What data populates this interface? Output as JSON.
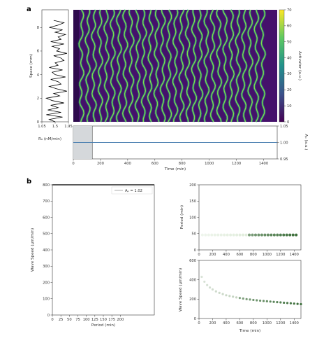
{
  "panel_labels": {
    "a": "a",
    "b": "b"
  },
  "colors": {
    "kymo_bg": "#45116b",
    "wave_line": "#7ede4a",
    "wave_mid": "#22a884",
    "axis": "#333333",
    "blue_line": "#4a7fb0",
    "shade": "#d5d8db",
    "green_dark": "#3c6e3a",
    "green_light": "#cfe2c8"
  },
  "chart_data": [
    {
      "id": "kymograph",
      "type": "heatmap",
      "ylabel": "Space (mm)",
      "xlim": [
        0,
        1500
      ],
      "ylim": [
        0,
        9.5
      ],
      "yticks": [
        "0",
        "2",
        "4",
        "6",
        "8"
      ],
      "colorbar": {
        "label": "Activator (a.u.)",
        "range": [
          0,
          70
        ],
        "ticks": [
          "0",
          "10",
          "20",
          "30",
          "40",
          "50",
          "60",
          "70"
        ]
      },
      "wave_count": 30,
      "wave_period_min": 46
    },
    {
      "id": "space-profile",
      "type": "line",
      "xlabel": "",
      "xlim": [
        1.05,
        1.95
      ],
      "xticks": [
        "1.05",
        "1.5",
        "1.95"
      ],
      "ylim": [
        0,
        9.5
      ],
      "profile_x": [
        1.5,
        1.3,
        1.75,
        1.2,
        1.7,
        1.25,
        1.6,
        1.35,
        1.8,
        1.4,
        1.2,
        1.65,
        1.45,
        1.9,
        1.55,
        1.3,
        1.7,
        1.6,
        1.35,
        1.85,
        1.5,
        1.4,
        1.75,
        1.3,
        1.6,
        1.5,
        1.8,
        1.7,
        1.45,
        1.9,
        1.55,
        1.65,
        1.4,
        1.8,
        1.35,
        1.7,
        1.6,
        1.85,
        1.5,
        1.75,
        1.3,
        1.6,
        1.8,
        1.45
      ],
      "profile_y": [
        0,
        0.2,
        0.4,
        0.6,
        0.8,
        1.0,
        1.2,
        1.4,
        1.6,
        1.8,
        2.0,
        2.2,
        2.4,
        2.6,
        2.8,
        3.0,
        3.2,
        3.4,
        3.6,
        3.8,
        4.0,
        4.2,
        4.4,
        4.6,
        4.8,
        5.0,
        5.2,
        5.4,
        5.6,
        5.8,
        6.0,
        6.2,
        6.4,
        6.6,
        6.8,
        7.0,
        7.2,
        7.4,
        7.6,
        7.8,
        8.0,
        8.2,
        8.4,
        8.6
      ]
    },
    {
      "id": "Ap-vs-time",
      "type": "line",
      "xlabel": "Time (min)",
      "ylabel": "Aₚ (a.u.)",
      "left_label": "Rₐ (nM/min)",
      "xlim": [
        0,
        1500
      ],
      "xticks": [
        "0",
        "200",
        "400",
        "600",
        "800",
        "1000",
        "1200",
        "1400"
      ],
      "ylim": [
        0.95,
        1.05
      ],
      "yticks": [
        "1.05",
        "1.00",
        "0.95"
      ],
      "shaded_until": 140,
      "series": [
        {
          "x": [
            0,
            1500
          ],
          "y": [
            1.0,
            1.0
          ]
        }
      ]
    },
    {
      "id": "speed-vs-period",
      "type": "line",
      "xlabel": "Period (min)",
      "ylabel": "Wave Speed (µm/min)",
      "xlim": [
        0,
        300
      ],
      "xticks": [
        "0",
        "25",
        "50",
        "75",
        "100",
        "125",
        "150",
        "175",
        "200"
      ],
      "ylim": [
        0,
        800
      ],
      "yticks": [
        "0",
        "100",
        "200",
        "300",
        "400",
        "500",
        "600",
        "700",
        "800"
      ],
      "legend": "Aₚ = 1.02",
      "series": [
        {
          "x": [
            46,
            46
          ],
          "y": [
            440,
            140
          ]
        }
      ]
    },
    {
      "id": "period-vs-time",
      "type": "scatter",
      "xlabel": "",
      "ylabel": "Period (min)",
      "xlim": [
        0,
        1500
      ],
      "xticks": [
        "0",
        "200",
        "400",
        "600",
        "800",
        "1000",
        "1200",
        "1400"
      ],
      "ylim": [
        0,
        200
      ],
      "yticks": [
        "0",
        "50",
        "100",
        "150",
        "200"
      ],
      "series": [
        {
          "x_start": 50,
          "x_step": 46,
          "count": 31,
          "y": 46
        }
      ]
    },
    {
      "id": "speed-vs-time",
      "type": "scatter",
      "xlabel": "Time (min)",
      "ylabel": "Wave Speed (µm/min)",
      "xlim": [
        0,
        1500
      ],
      "xticks": [
        "0",
        "200",
        "400",
        "600",
        "800",
        "1000",
        "1200",
        "1400"
      ],
      "ylim": [
        0,
        600
      ],
      "yticks": [
        "0",
        "200",
        "400",
        "600"
      ],
      "series": [
        {
          "x": [
            40,
            80,
            120,
            160,
            200,
            250,
            300,
            350,
            400,
            450,
            500,
            550,
            600,
            650,
            700,
            750,
            800,
            850,
            900,
            950,
            1000,
            1050,
            1100,
            1150,
            1200,
            1250,
            1300,
            1350,
            1400,
            1450,
            1500
          ],
          "y": [
            430,
            380,
            345,
            320,
            300,
            280,
            265,
            252,
            240,
            232,
            225,
            218,
            212,
            206,
            200,
            196,
            192,
            188,
            184,
            181,
            178,
            175,
            172,
            169,
            166,
            163,
            160,
            157,
            154,
            151,
            148
          ]
        }
      ]
    }
  ]
}
